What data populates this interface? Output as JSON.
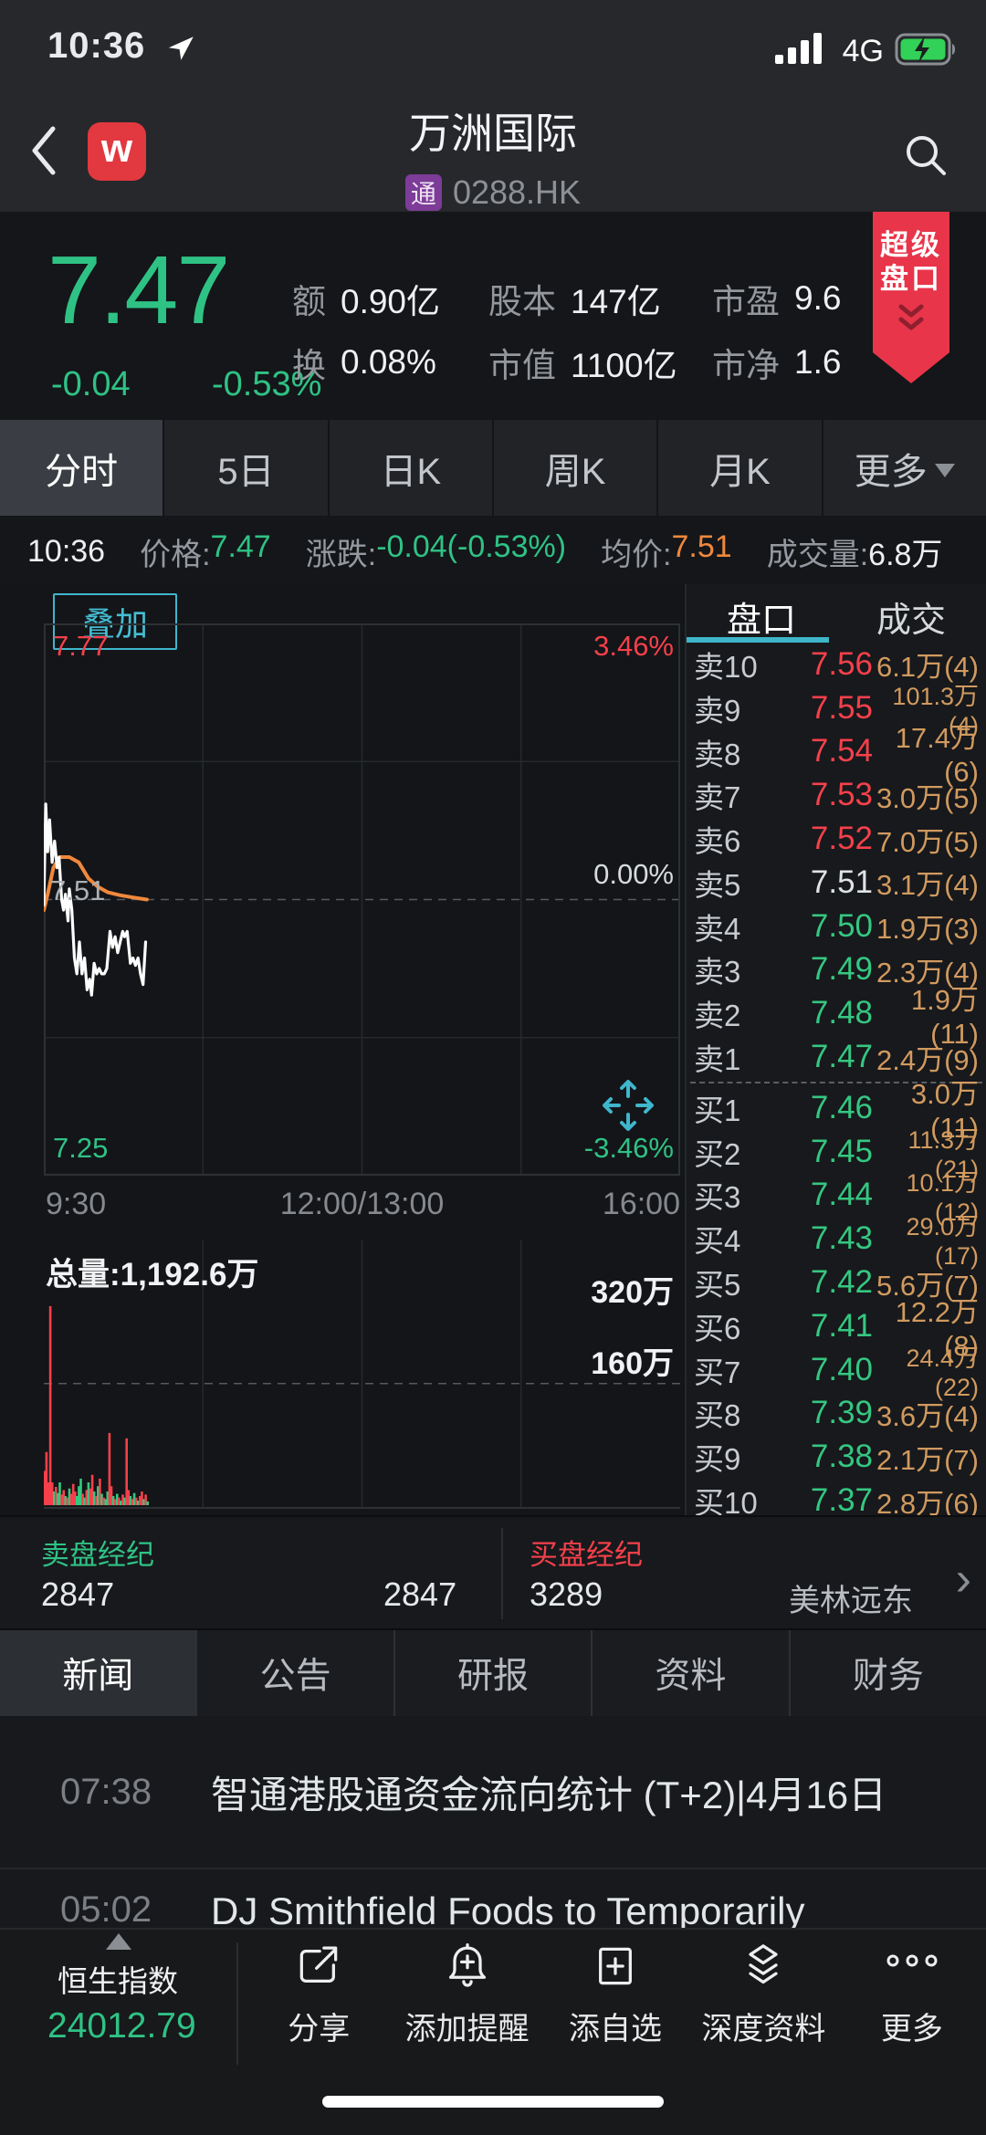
{
  "status_bar": {
    "time": "10:36",
    "network": "4G"
  },
  "header": {
    "title": "万洲国际",
    "market_badge": "通",
    "symbol": "0288.HK",
    "logo_letter": "w"
  },
  "quote": {
    "price": "7.47",
    "change": "-0.04",
    "change_pct": "-0.53%",
    "stats": [
      {
        "label": "额",
        "value": "0.90亿"
      },
      {
        "label": "股本",
        "value": "147亿"
      },
      {
        "label": "市盈",
        "value": "9.6"
      },
      {
        "label": "换",
        "value": "0.08%"
      },
      {
        "label": "市值",
        "value": "1100亿"
      },
      {
        "label": "市净",
        "value": "1.6"
      }
    ],
    "ribbon": {
      "line1": "超级",
      "line2": "盘口"
    }
  },
  "period_tabs": [
    {
      "label": "分时",
      "active": true
    },
    {
      "label": "5日"
    },
    {
      "label": "日K"
    },
    {
      "label": "周K"
    },
    {
      "label": "月K"
    },
    {
      "label": "更多",
      "dropdown": true
    }
  ],
  "info_row": {
    "time": "10:36",
    "price_label": "价格:",
    "price": "7.47",
    "change_label": "涨跌:",
    "change": "-0.04(-0.53%)",
    "avg_label": "均价:",
    "avg": "7.51",
    "vol_label": "成交量:",
    "vol": "6.8万"
  },
  "overlay_button": "叠加",
  "chart_data": {
    "type": "line",
    "title": "分时 intraday chart",
    "x_ticks": [
      "9:30",
      "12:00/13:00",
      "16:00"
    ],
    "y_left_ticks": [
      "7.77",
      "7.51",
      "7.25"
    ],
    "y_right_ticks": [
      "3.46%",
      "0.00%",
      "-3.46%"
    ],
    "ylim": [
      7.25,
      7.77
    ],
    "prev_close": 7.51,
    "grid": true,
    "grid_color": "#26292c",
    "border_color": "#2e3134",
    "dash_color": "#56595e",
    "up_color": "#f5404b",
    "down_color": "#35c781",
    "series": [
      {
        "name": "avg_price",
        "color": "#f0883c",
        "width": 4,
        "points": [
          [
            0.0,
            7.5
          ],
          [
            0.006,
            7.515
          ],
          [
            0.015,
            7.54
          ],
          [
            0.025,
            7.55
          ],
          [
            0.04,
            7.55
          ],
          [
            0.055,
            7.545
          ],
          [
            0.07,
            7.53
          ],
          [
            0.085,
            7.522
          ],
          [
            0.1,
            7.517
          ],
          [
            0.12,
            7.514
          ],
          [
            0.14,
            7.512
          ],
          [
            0.162,
            7.51
          ]
        ]
      },
      {
        "name": "price",
        "color": "#fdfdfd",
        "width": 3.2,
        "points": [
          [
            0.0,
            7.505
          ],
          [
            0.003,
            7.6
          ],
          [
            0.006,
            7.555
          ],
          [
            0.009,
            7.585
          ],
          [
            0.013,
            7.545
          ],
          [
            0.017,
            7.565
          ],
          [
            0.021,
            7.54
          ],
          [
            0.024,
            7.55
          ],
          [
            0.028,
            7.51
          ],
          [
            0.031,
            7.5
          ],
          [
            0.034,
            7.515
          ],
          [
            0.038,
            7.49
          ],
          [
            0.04,
            7.52
          ],
          [
            0.044,
            7.5
          ],
          [
            0.048,
            7.455
          ],
          [
            0.052,
            7.44
          ],
          [
            0.056,
            7.47
          ],
          [
            0.06,
            7.44
          ],
          [
            0.064,
            7.455
          ],
          [
            0.068,
            7.425
          ],
          [
            0.072,
            7.435
          ],
          [
            0.075,
            7.42
          ],
          [
            0.079,
            7.45
          ],
          [
            0.083,
            7.44
          ],
          [
            0.087,
            7.445
          ],
          [
            0.091,
            7.44
          ],
          [
            0.095,
            7.44
          ],
          [
            0.099,
            7.445
          ],
          [
            0.104,
            7.48
          ],
          [
            0.108,
            7.465
          ],
          [
            0.112,
            7.475
          ],
          [
            0.116,
            7.46
          ],
          [
            0.12,
            7.47
          ],
          [
            0.124,
            7.48
          ],
          [
            0.127,
            7.475
          ],
          [
            0.131,
            7.48
          ],
          [
            0.136,
            7.45
          ],
          [
            0.14,
            7.455
          ],
          [
            0.144,
            7.448
          ],
          [
            0.148,
            7.455
          ],
          [
            0.152,
            7.44
          ],
          [
            0.156,
            7.43
          ],
          [
            0.16,
            7.47
          ]
        ]
      }
    ],
    "volume": {
      "total_label": "总量:1,192.6万",
      "ticks": [
        {
          "label": "320万",
          "v": 320,
          "line": false
        },
        {
          "label": "160万",
          "v": 160,
          "line": true
        }
      ],
      "vmax": 340,
      "bars": [
        [
          0.001,
          45,
          "r"
        ],
        [
          0.004,
          70,
          "r"
        ],
        [
          0.007,
          30,
          "r"
        ],
        [
          0.01,
          262,
          "r"
        ],
        [
          0.013,
          30,
          "r"
        ],
        [
          0.016,
          18,
          "g"
        ],
        [
          0.019,
          24,
          "r"
        ],
        [
          0.022,
          16,
          "g"
        ],
        [
          0.025,
          30,
          "g"
        ],
        [
          0.028,
          14,
          "r"
        ],
        [
          0.031,
          20,
          "r"
        ],
        [
          0.034,
          12,
          "g"
        ],
        [
          0.037,
          10,
          "r"
        ],
        [
          0.04,
          22,
          "g"
        ],
        [
          0.043,
          15,
          "r"
        ],
        [
          0.046,
          28,
          "r"
        ],
        [
          0.049,
          18,
          "r"
        ],
        [
          0.052,
          12,
          "g"
        ],
        [
          0.055,
          25,
          "g"
        ],
        [
          0.058,
          35,
          "g"
        ],
        [
          0.061,
          15,
          "r"
        ],
        [
          0.064,
          10,
          "g"
        ],
        [
          0.067,
          20,
          "r"
        ],
        [
          0.07,
          30,
          "g"
        ],
        [
          0.073,
          22,
          "r"
        ],
        [
          0.076,
          40,
          "r"
        ],
        [
          0.079,
          18,
          "g"
        ],
        [
          0.082,
          12,
          "r"
        ],
        [
          0.085,
          25,
          "g"
        ],
        [
          0.088,
          35,
          "r"
        ],
        [
          0.091,
          15,
          "g"
        ],
        [
          0.094,
          10,
          "r"
        ],
        [
          0.097,
          8,
          "g"
        ],
        [
          0.1,
          18,
          "g"
        ],
        [
          0.103,
          95,
          "r"
        ],
        [
          0.106,
          25,
          "r"
        ],
        [
          0.109,
          12,
          "g"
        ],
        [
          0.112,
          8,
          "r"
        ],
        [
          0.115,
          15,
          "g"
        ],
        [
          0.118,
          10,
          "r"
        ],
        [
          0.121,
          6,
          "g"
        ],
        [
          0.124,
          14,
          "r"
        ],
        [
          0.127,
          10,
          "g"
        ],
        [
          0.13,
          88,
          "r"
        ],
        [
          0.133,
          20,
          "r"
        ],
        [
          0.136,
          12,
          "g"
        ],
        [
          0.139,
          8,
          "r"
        ],
        [
          0.142,
          16,
          "g"
        ],
        [
          0.145,
          10,
          "r"
        ],
        [
          0.148,
          6,
          "g"
        ],
        [
          0.151,
          12,
          "r"
        ],
        [
          0.154,
          18,
          "r"
        ],
        [
          0.157,
          8,
          "g"
        ],
        [
          0.16,
          14,
          "r"
        ],
        [
          0.163,
          5,
          "g"
        ]
      ]
    }
  },
  "orderbook": {
    "tabs": [
      {
        "label": "盘口",
        "active": true
      },
      {
        "label": "成交"
      }
    ],
    "sells": [
      {
        "side": "卖10",
        "price": "7.56",
        "color": "#f5404b",
        "vol": "6.1万(4)"
      },
      {
        "side": "卖9",
        "price": "7.55",
        "color": "#f5404b",
        "vol": "101.3万(4)"
      },
      {
        "side": "卖8",
        "price": "7.54",
        "color": "#f5404b",
        "vol": "17.4万(6)"
      },
      {
        "side": "卖7",
        "price": "7.53",
        "color": "#f5404b",
        "vol": "3.0万(5)"
      },
      {
        "side": "卖6",
        "price": "7.52",
        "color": "#f5404b",
        "vol": "7.0万(5)"
      },
      {
        "side": "卖5",
        "price": "7.51",
        "color": "#dfe3e6",
        "vol": "3.1万(4)"
      },
      {
        "side": "卖4",
        "price": "7.50",
        "color": "#35c781",
        "vol": "1.9万(3)"
      },
      {
        "side": "卖3",
        "price": "7.49",
        "color": "#35c781",
        "vol": "2.3万(4)"
      },
      {
        "side": "卖2",
        "price": "7.48",
        "color": "#35c781",
        "vol": "1.9万(11)"
      },
      {
        "side": "卖1",
        "price": "7.47",
        "color": "#35c781",
        "vol": "2.4万(9)"
      }
    ],
    "buys": [
      {
        "side": "买1",
        "price": "7.46",
        "color": "#35c781",
        "vol": "3.0万(11)"
      },
      {
        "side": "买2",
        "price": "7.45",
        "color": "#35c781",
        "vol": "11.3万(21)"
      },
      {
        "side": "买3",
        "price": "7.44",
        "color": "#35c781",
        "vol": "10.1万(12)"
      },
      {
        "side": "买4",
        "price": "7.43",
        "color": "#35c781",
        "vol": "29.0万(17)"
      },
      {
        "side": "买5",
        "price": "7.42",
        "color": "#35c781",
        "vol": "5.6万(7)"
      },
      {
        "side": "买6",
        "price": "7.41",
        "color": "#35c781",
        "vol": "12.2万(8)"
      },
      {
        "side": "买7",
        "price": "7.40",
        "color": "#35c781",
        "vol": "24.4万(22)"
      },
      {
        "side": "买8",
        "price": "7.39",
        "color": "#35c781",
        "vol": "3.6万(4)"
      },
      {
        "side": "买9",
        "price": "7.38",
        "color": "#35c781",
        "vol": "2.1万(7)"
      },
      {
        "side": "买10",
        "price": "7.37",
        "color": "#35c781",
        "vol": "2.8万(6)"
      }
    ]
  },
  "brokers": {
    "sell_title": "卖盘经纪",
    "sell_values": [
      "2847",
      "2847"
    ],
    "buy_title": "买盘经纪",
    "buy_value": "3289",
    "buy_right": "美林远东",
    "chevron": "›"
  },
  "news_tabs": [
    {
      "label": "新闻",
      "active": true
    },
    {
      "label": "公告"
    },
    {
      "label": "研报"
    },
    {
      "label": "资料"
    },
    {
      "label": "财务"
    }
  ],
  "news": [
    {
      "time": "07:38",
      "title": "智通港股通资金流向统计 (T+2)|4月16日"
    },
    {
      "time": "05:02",
      "title": "DJ Smithfield Foods to Temporarily"
    }
  ],
  "bottom_bar": {
    "index_name": "恒生指数",
    "index_value": "24012.79",
    "actions": [
      {
        "label": "分享",
        "icon": "share-icon"
      },
      {
        "label": "添加提醒",
        "icon": "bell-plus-icon"
      },
      {
        "label": "添自选",
        "icon": "add-watchlist-icon"
      },
      {
        "label": "深度资料",
        "icon": "layers-icon"
      },
      {
        "label": "更多",
        "icon": "more-dots-icon"
      }
    ]
  },
  "colors": {
    "up": "#f5404b",
    "down": "#35c781",
    "accent_cyan": "#3fb6cc",
    "avg_orange": "#f0883c",
    "vol_orange": "#d19a5f",
    "badge_purple": "#7d3c98",
    "ribbon_red": "#e8354a",
    "index_green": "#2fc285"
  }
}
